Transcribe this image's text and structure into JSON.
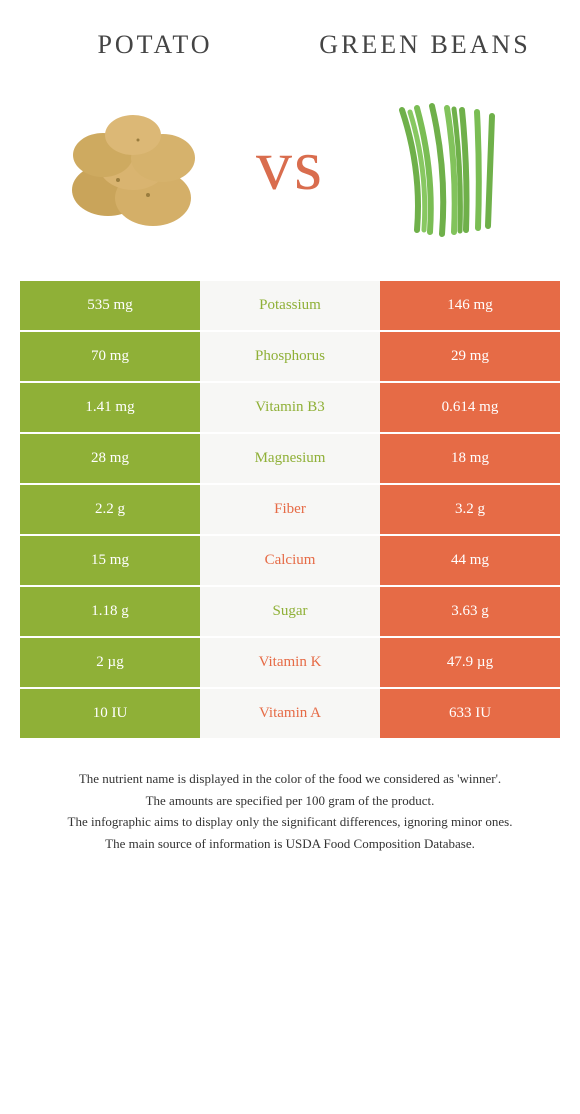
{
  "food_left": {
    "name": "Potato",
    "color": "#8fb037"
  },
  "food_right": {
    "name": "Green beans",
    "color": "#e66b46"
  },
  "vs_label": "vs",
  "colors": {
    "left_cell_bg": "#8fb037",
    "right_cell_bg": "#e66b46",
    "mid_cell_bg": "#f7f7f5",
    "left_winner_text": "#8fb037",
    "right_winner_text": "#e66b46",
    "cell_text": "#ffffff",
    "title_text": "#444444",
    "footnote_text": "#333333"
  },
  "typography": {
    "title_fontsize": 26,
    "title_letterspacing": 3,
    "vs_fontsize": 72,
    "cell_fontsize": 15,
    "footnote_fontsize": 13
  },
  "rows": [
    {
      "nutrient": "Potassium",
      "left": "535 mg",
      "right": "146 mg",
      "winner": "left"
    },
    {
      "nutrient": "Phosphorus",
      "left": "70 mg",
      "right": "29 mg",
      "winner": "left"
    },
    {
      "nutrient": "Vitamin B3",
      "left": "1.41 mg",
      "right": "0.614 mg",
      "winner": "left"
    },
    {
      "nutrient": "Magnesium",
      "left": "28 mg",
      "right": "18 mg",
      "winner": "left"
    },
    {
      "nutrient": "Fiber",
      "left": "2.2 g",
      "right": "3.2 g",
      "winner": "right"
    },
    {
      "nutrient": "Calcium",
      "left": "15 mg",
      "right": "44 mg",
      "winner": "right"
    },
    {
      "nutrient": "Sugar",
      "left": "1.18 g",
      "right": "3.63 g",
      "winner": "left"
    },
    {
      "nutrient": "Vitamin K",
      "left": "2 µg",
      "right": "47.9 µg",
      "winner": "right"
    },
    {
      "nutrient": "Vitamin A",
      "left": "10 IU",
      "right": "633 IU",
      "winner": "right"
    }
  ],
  "footnotes": [
    "The nutrient name is displayed in the color of the food we considered as 'winner'.",
    "The amounts are specified per 100 gram of the product.",
    "The infographic aims to display only the significant differences, ignoring minor ones.",
    "The main source of information is USDA Food Composition Database."
  ]
}
